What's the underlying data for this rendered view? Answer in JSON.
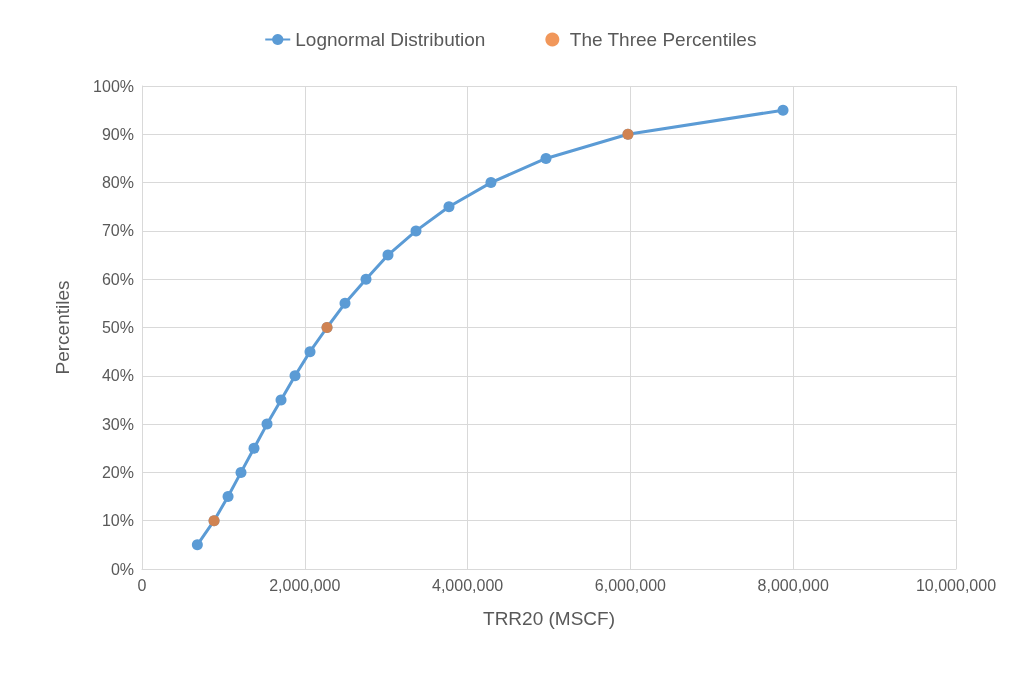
{
  "chart_data": {
    "type": "line",
    "xlabel": "TRR20 (MSCF)",
    "ylabel": "Percentiles",
    "series": [
      {
        "name": "Lognormal Distribution",
        "color": "#5b9bd5",
        "x": [
          680000,
          885000,
          1057000,
          1216000,
          1376000,
          1536000,
          1708000,
          1880000,
          2064000,
          2273000,
          2494000,
          2752000,
          3022000,
          3366000,
          3771000,
          4287000,
          4963000,
          5970000,
          7875000
        ],
        "values": [
          5,
          10,
          15,
          20,
          25,
          30,
          35,
          40,
          45,
          50,
          55,
          60,
          65,
          70,
          75,
          80,
          85,
          90,
          95
        ]
      },
      {
        "name": "The Three Percentiles",
        "type": "scatter",
        "color": "#ed7d31",
        "x": [
          885000,
          2273000,
          5970000
        ],
        "values": [
          10,
          50,
          90
        ]
      }
    ],
    "xlim": [
      0,
      10000000
    ],
    "xticks": [
      {
        "value": 0,
        "label": "0"
      },
      {
        "value": 2000000,
        "label": "2,000,000"
      },
      {
        "value": 4000000,
        "label": "4,000,000"
      },
      {
        "value": 6000000,
        "label": "6,000,000"
      },
      {
        "value": 8000000,
        "label": "8,000,000"
      },
      {
        "value": 10000000,
        "label": "10,000,000"
      }
    ],
    "ylim": [
      0,
      100
    ],
    "yticks": [
      {
        "value": 0,
        "label": "0%"
      },
      {
        "value": 10,
        "label": "10%"
      },
      {
        "value": 20,
        "label": "20%"
      },
      {
        "value": 30,
        "label": "30%"
      },
      {
        "value": 40,
        "label": "40%"
      },
      {
        "value": 50,
        "label": "50%"
      },
      {
        "value": 60,
        "label": "60%"
      },
      {
        "value": 70,
        "label": "70%"
      },
      {
        "value": 80,
        "label": "80%"
      },
      {
        "value": 90,
        "label": "90%"
      },
      {
        "value": 100,
        "label": "100%"
      }
    ],
    "grid": true,
    "legend": "top",
    "marker": "circle",
    "line_style": "solid"
  }
}
